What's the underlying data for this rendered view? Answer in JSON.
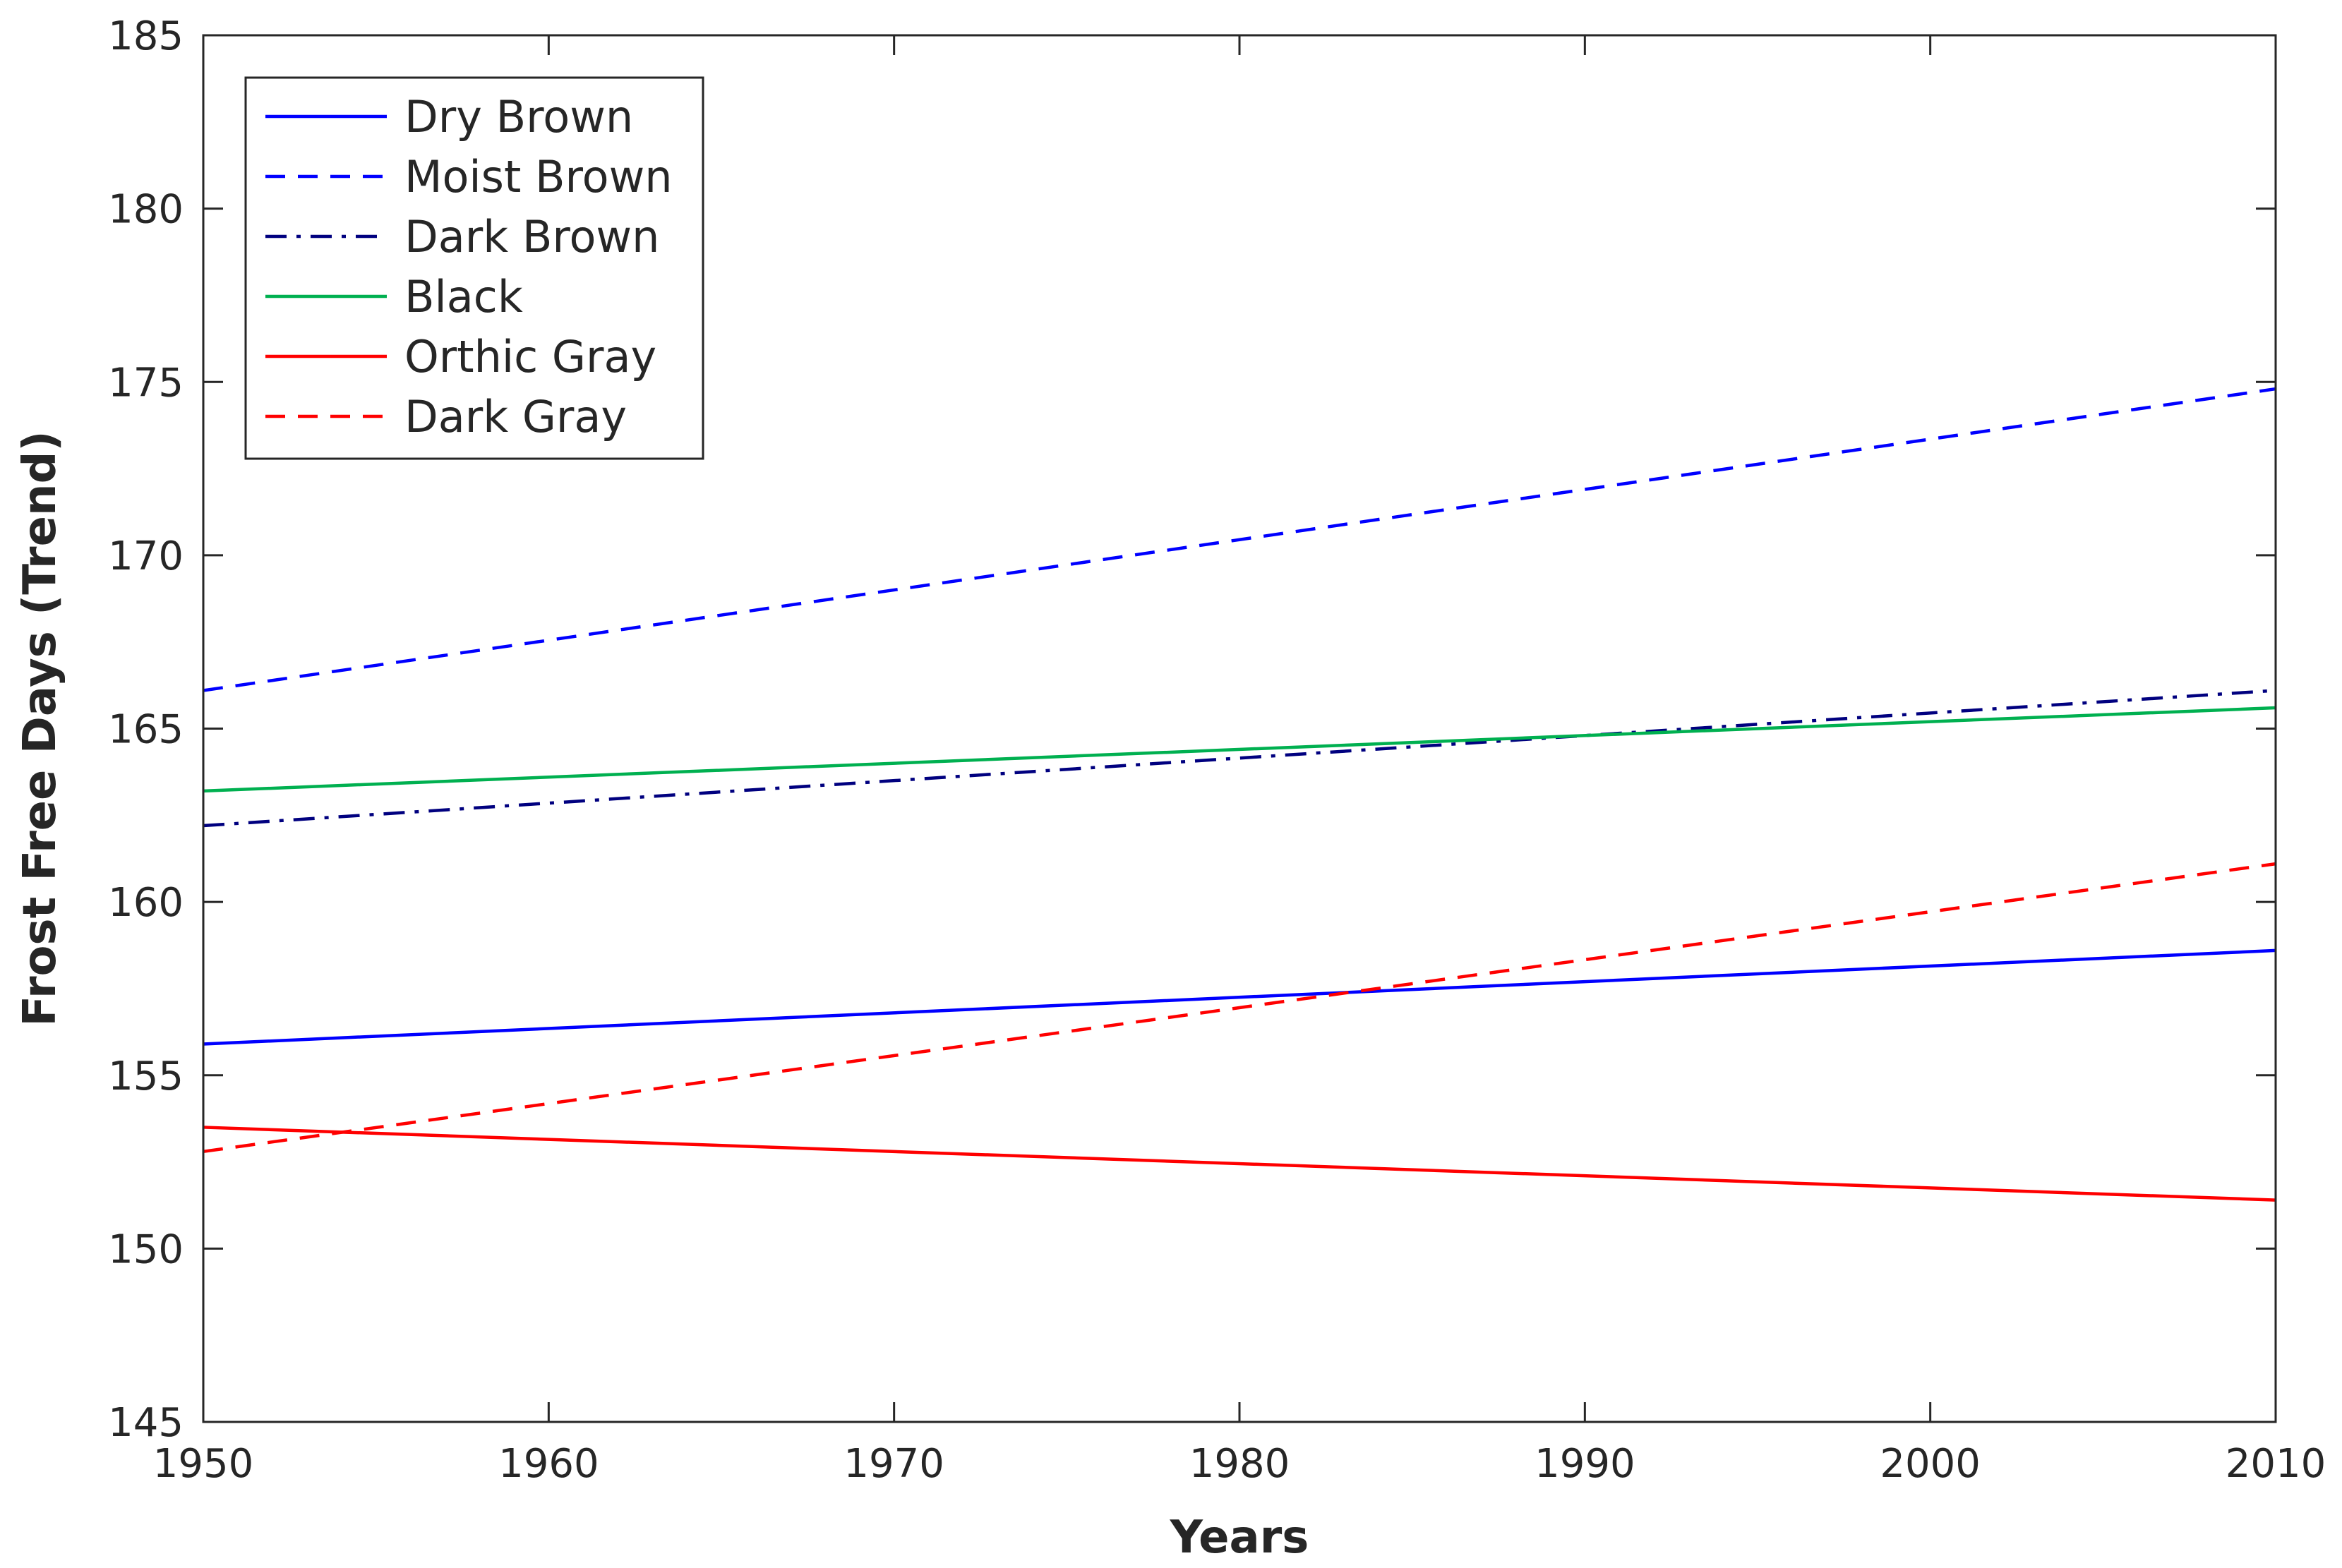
{
  "chart_data": {
    "type": "line",
    "title": "",
    "xlabel": "Years",
    "ylabel": "Frost Free Days (Trend)",
    "xlim": [
      1950,
      2010
    ],
    "ylim": [
      145,
      185
    ],
    "xticks": [
      1950,
      1960,
      1970,
      1980,
      1990,
      2000,
      2010
    ],
    "yticks": [
      145,
      150,
      155,
      160,
      165,
      170,
      175,
      180,
      185
    ],
    "grid": false,
    "legend_position": "top-left",
    "series": [
      {
        "name": "Dry Brown",
        "x": [
          1950,
          2010
        ],
        "values": [
          155.9,
          158.6
        ],
        "color": "#0000ff",
        "style": "solid"
      },
      {
        "name": "Moist Brown",
        "x": [
          1950,
          2010
        ],
        "values": [
          166.1,
          174.8
        ],
        "color": "#0000ff",
        "style": "dashed"
      },
      {
        "name": "Dark Brown",
        "x": [
          1950,
          2010
        ],
        "values": [
          162.2,
          166.1
        ],
        "color": "#00007f",
        "style": "dashdot"
      },
      {
        "name": "Black",
        "x": [
          1950,
          2010
        ],
        "values": [
          163.2,
          165.6
        ],
        "color": "#00b050",
        "style": "solid"
      },
      {
        "name": "Orthic Gray",
        "x": [
          1950,
          2010
        ],
        "values": [
          153.5,
          151.4
        ],
        "color": "#ff0000",
        "style": "solid"
      },
      {
        "name": "Dark Gray",
        "x": [
          1950,
          2010
        ],
        "values": [
          152.8,
          161.1
        ],
        "color": "#ff0000",
        "style": "dashed"
      }
    ]
  }
}
